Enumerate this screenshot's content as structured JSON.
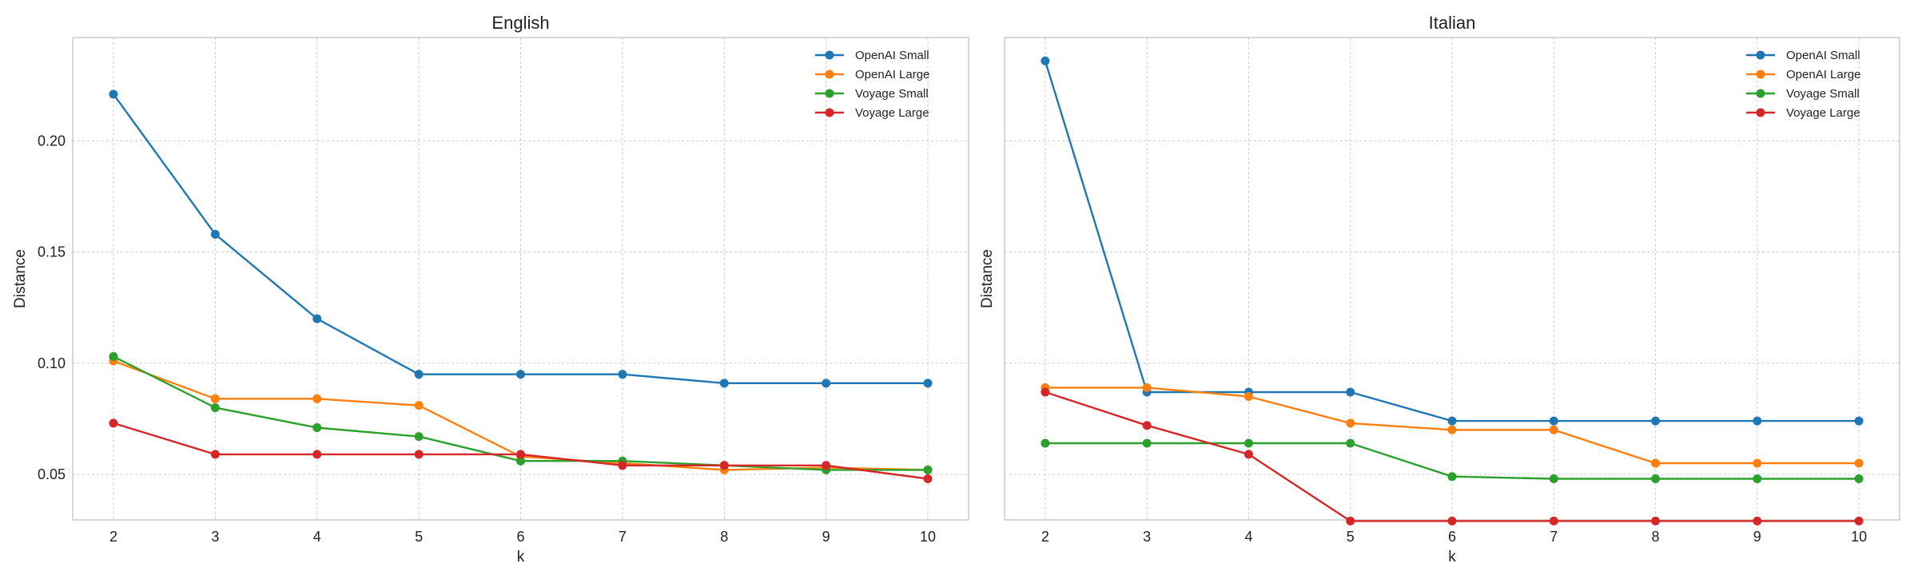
{
  "chart_data": [
    {
      "type": "line",
      "title": "English",
      "xlabel": "k",
      "ylabel": "Distance",
      "x": [
        2,
        3,
        4,
        5,
        6,
        7,
        8,
        9,
        10
      ],
      "xticks": [
        "2",
        "3",
        "4",
        "5",
        "6",
        "7",
        "8",
        "9",
        "10"
      ],
      "yticks": [
        "0.05",
        "0.10",
        "0.15",
        "0.20"
      ],
      "xlim": [
        1.6,
        10.4
      ],
      "ylim": [
        0.0295,
        0.2465
      ],
      "grid": true,
      "legend_position": "top-right",
      "series": [
        {
          "name": "OpenAI Small",
          "color": "#1f77b4",
          "values": [
            0.221,
            0.158,
            0.12,
            0.095,
            0.095,
            0.095,
            0.091,
            0.091,
            0.091
          ]
        },
        {
          "name": "OpenAI Large",
          "color": "#ff7f0e",
          "values": [
            0.101,
            0.084,
            0.084,
            0.081,
            0.058,
            0.055,
            0.052,
            0.053,
            0.052
          ]
        },
        {
          "name": "Voyage Small",
          "color": "#2ca02c",
          "values": [
            0.103,
            0.08,
            0.071,
            0.067,
            0.056,
            0.056,
            0.054,
            0.052,
            0.052
          ]
        },
        {
          "name": "Voyage Large",
          "color": "#d62728",
          "values": [
            0.073,
            0.059,
            0.059,
            0.059,
            0.059,
            0.054,
            0.054,
            0.054,
            0.048
          ]
        }
      ]
    },
    {
      "type": "line",
      "title": "Italian",
      "xlabel": "k",
      "ylabel": "Distance",
      "x": [
        2,
        3,
        4,
        5,
        6,
        7,
        8,
        9,
        10
      ],
      "xticks": [
        "2",
        "3",
        "4",
        "5",
        "6",
        "7",
        "8",
        "9",
        "10"
      ],
      "yticks": [],
      "xlim": [
        1.6,
        10.4
      ],
      "ylim": [
        0.0295,
        0.2465
      ],
      "grid": true,
      "legend_position": "top-right",
      "series": [
        {
          "name": "OpenAI Small",
          "color": "#1f77b4",
          "values": [
            0.236,
            0.087,
            0.087,
            0.087,
            0.074,
            0.074,
            0.074,
            0.074,
            0.074
          ]
        },
        {
          "name": "OpenAI Large",
          "color": "#ff7f0e",
          "values": [
            0.089,
            0.089,
            0.085,
            0.073,
            0.07,
            0.07,
            0.055,
            0.055,
            0.055
          ]
        },
        {
          "name": "Voyage Small",
          "color": "#2ca02c",
          "values": [
            0.064,
            0.064,
            0.064,
            0.064,
            0.049,
            0.048,
            0.048,
            0.048,
            0.048
          ]
        },
        {
          "name": "Voyage Large",
          "color": "#d62728",
          "values": [
            0.087,
            0.072,
            0.059,
            0.029,
            0.029,
            0.029,
            0.029,
            0.029,
            0.029
          ]
        }
      ]
    }
  ]
}
